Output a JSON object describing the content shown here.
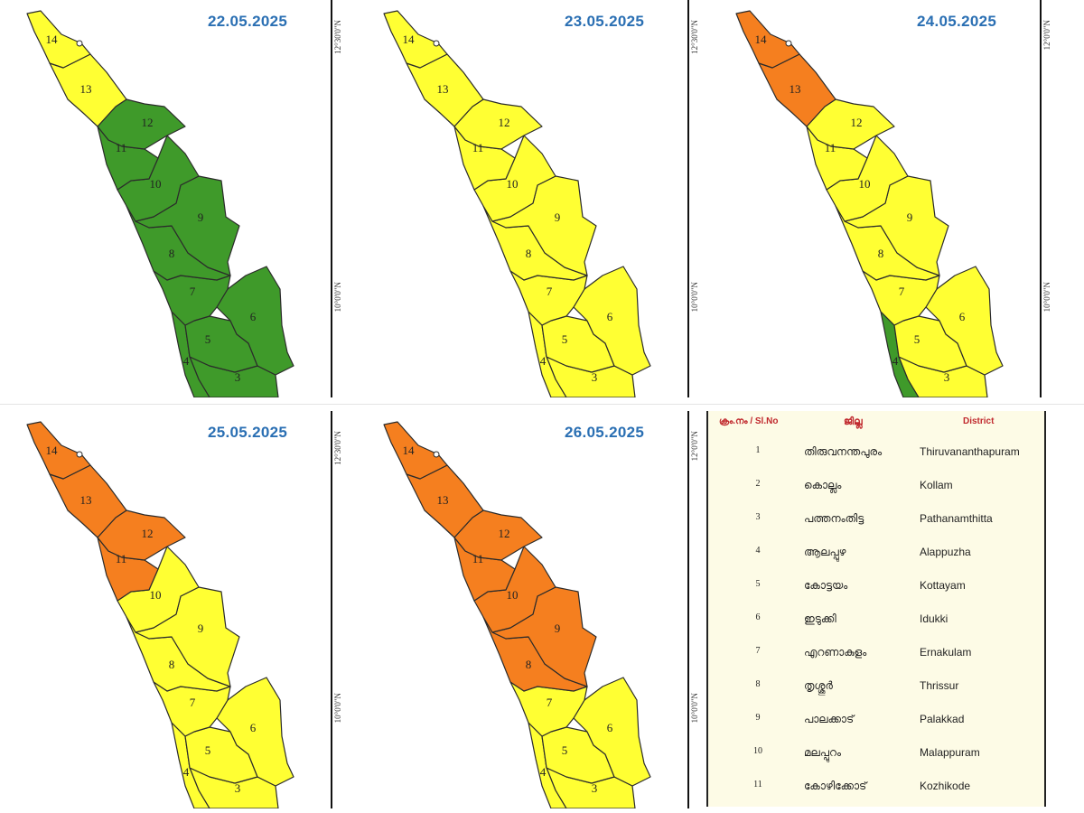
{
  "colors": {
    "green": "#3f9a2a",
    "yellow": "#ffff33",
    "orange": "#f57f1f",
    "border": "#2b2b2b",
    "date_text": "#2a6fb3",
    "legend_header": "#c0282d"
  },
  "maps": [
    {
      "date": "22.05.2025",
      "coord_top": "12°30'0\"N",
      "coord_bottom": "10°0'0\"N",
      "district_alerts": {
        "14": "yellow",
        "13": "yellow",
        "12": "green",
        "11": "green",
        "10": "green",
        "9": "green",
        "8": "green",
        "7": "green",
        "6": "green",
        "5": "green",
        "4": "green",
        "3": "green"
      }
    },
    {
      "date": "23.05.2025",
      "coord_top": "12°30'0\"N",
      "coord_bottom": "10°0'0\"N",
      "district_alerts": {
        "14": "yellow",
        "13": "yellow",
        "12": "yellow",
        "11": "yellow",
        "10": "yellow",
        "9": "yellow",
        "8": "yellow",
        "7": "yellow",
        "6": "yellow",
        "5": "yellow",
        "4": "yellow",
        "3": "yellow"
      }
    },
    {
      "date": "24.05.2025",
      "coord_top": "12°0'0\"N",
      "coord_bottom": "10°0'0\"N",
      "district_alerts": {
        "14": "orange",
        "13": "orange",
        "12": "yellow",
        "11": "yellow",
        "10": "yellow",
        "9": "yellow",
        "8": "yellow",
        "7": "yellow",
        "6": "yellow",
        "5": "yellow",
        "4": "green",
        "3": "yellow"
      }
    },
    {
      "date": "25.05.2025",
      "coord_top": "12°30'0\"N",
      "coord_bottom": "10°0'0\"N",
      "district_alerts": {
        "14": "orange",
        "13": "orange",
        "12": "orange",
        "11": "orange",
        "10": "yellow",
        "9": "yellow",
        "8": "yellow",
        "7": "yellow",
        "6": "yellow",
        "5": "yellow",
        "4": "yellow",
        "3": "yellow"
      }
    },
    {
      "date": "26.05.2025",
      "coord_top": "12°0'0\"N",
      "coord_bottom": "10°0'0\"N",
      "district_alerts": {
        "14": "orange",
        "13": "orange",
        "12": "orange",
        "11": "orange",
        "10": "orange",
        "9": "orange",
        "8": "orange",
        "7": "yellow",
        "6": "yellow",
        "5": "yellow",
        "4": "yellow",
        "3": "yellow"
      }
    }
  ],
  "legend": {
    "header_no": "ക്രം.നം / Sl.No",
    "header_ml": "ജില്ല",
    "header_en": "District",
    "rows": [
      {
        "no": "1",
        "ml": "തിരുവനന്തപുരം",
        "en": "Thiruvananthapuram"
      },
      {
        "no": "2",
        "ml": "കൊല്ലം",
        "en": "Kollam"
      },
      {
        "no": "3",
        "ml": "പത്തനംതിട്ട",
        "en": "Pathanamthitta"
      },
      {
        "no": "4",
        "ml": "ആലപ്പുഴ",
        "en": "Alappuzha"
      },
      {
        "no": "5",
        "ml": "കോട്ടയം",
        "en": "Kottayam"
      },
      {
        "no": "6",
        "ml": "ഇടുക്കി",
        "en": "Idukki"
      },
      {
        "no": "7",
        "ml": "എറണാകുളം",
        "en": "Ernakulam"
      },
      {
        "no": "8",
        "ml": "തൃശ്ശൂർ",
        "en": "Thrissur"
      },
      {
        "no": "9",
        "ml": "പാലക്കാട്",
        "en": "Palakkad"
      },
      {
        "no": "10",
        "ml": "മലപ്പുറം",
        "en": "Malappuram"
      },
      {
        "no": "11",
        "ml": "കോഴിക്കോട്",
        "en": "Kozhikode"
      }
    ]
  }
}
